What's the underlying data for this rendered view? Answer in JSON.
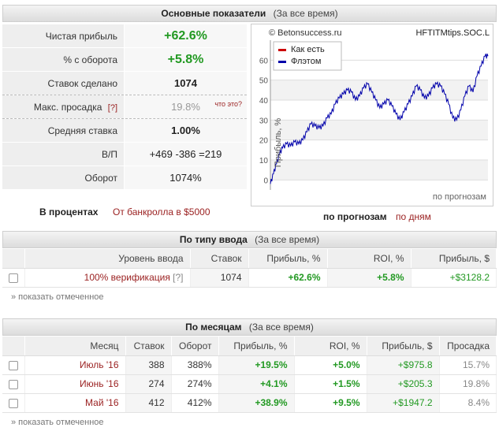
{
  "overview": {
    "title": "Основные показатели",
    "subtitle": "(За все время)",
    "rows": [
      {
        "label": "Чистая прибыль",
        "value": "+62.6%"
      },
      {
        "label": "% с оборота",
        "value": "+5.8%"
      },
      {
        "label": "Ставок сделано",
        "value": "1074"
      },
      {
        "label": "Макс. просадка",
        "qmark": "[?]",
        "value": "19.8%",
        "hint": "что это?"
      },
      {
        "label": "Средняя ставка",
        "value": "1.00%"
      },
      {
        "label": "В/П",
        "value": "+469 -386 =219"
      },
      {
        "label": "Оборот",
        "value": "1074%"
      }
    ],
    "pct_label": "В процентах",
    "bankroll_link": "От банкролла в $5000"
  },
  "chart": {
    "site": "© Betonsuccess.ru",
    "account": "HFTITMtips.SOC.L",
    "legend": [
      "Как есть",
      "Флэтом"
    ],
    "ylabel": "Прибыль, %",
    "xlabel_inside": "по прогнозам",
    "caption_bold": "по прогнозам",
    "caption_link": "по дням"
  },
  "chart_data": {
    "type": "line",
    "ylim": [
      -5,
      70
    ],
    "yticks": [
      0,
      10,
      20,
      30,
      40,
      50,
      60
    ],
    "xlim": [
      0,
      1074
    ],
    "series": [
      {
        "name": "Как есть",
        "color": "#cc0000",
        "values": []
      },
      {
        "name": "Флэтом",
        "color": "#0000aa",
        "x": [
          0,
          15,
          30,
          45,
          60,
          80,
          100,
          120,
          140,
          160,
          180,
          200,
          220,
          240,
          260,
          280,
          300,
          320,
          340,
          360,
          380,
          400,
          420,
          440,
          460,
          480,
          500,
          520,
          540,
          560,
          580,
          600,
          620,
          640,
          660,
          680,
          700,
          720,
          740,
          760,
          780,
          800,
          820,
          840,
          860,
          880,
          900,
          920,
          940,
          960,
          980,
          1000,
          1020,
          1040,
          1060,
          1074
        ],
        "values": [
          -2,
          3,
          8,
          13,
          16,
          18,
          17,
          19,
          18,
          20,
          24,
          28,
          27,
          26,
          27,
          31,
          33,
          38,
          41,
          43,
          45,
          44,
          40,
          42,
          46,
          48,
          44,
          40,
          36,
          38,
          40,
          37,
          33,
          30,
          34,
          38,
          42,
          47,
          45,
          41,
          42,
          46,
          48,
          47,
          43,
          38,
          31,
          30,
          35,
          42,
          47,
          44,
          52,
          57,
          62,
          62
        ]
      }
    ]
  },
  "by_type": {
    "title": "По типу ввода",
    "subtitle": "(За все время)",
    "headers": [
      "Уровень ввода",
      "Ставок",
      "Прибыль, %",
      "ROI, %",
      "Прибыль, $"
    ],
    "rows": [
      {
        "level": "100% верификация",
        "qmark": "[?]",
        "bets": "1074",
        "profit_pct": "+62.6%",
        "roi": "+5.8%",
        "profit_usd": "+$3128.2"
      }
    ],
    "show_marked": "» показать отмеченное"
  },
  "by_month": {
    "title": "По месяцам",
    "subtitle": "(За все время)",
    "headers": [
      "Месяц",
      "Ставок",
      "Оборот",
      "Прибыль, %",
      "ROI, %",
      "Прибыль, $",
      "Просадка"
    ],
    "rows": [
      {
        "month": "Июль '16",
        "bets": "388",
        "turnover": "388%",
        "profit_pct": "+19.5%",
        "roi": "+5.0%",
        "profit_usd": "+$975.8",
        "drawdown": "15.7%"
      },
      {
        "month": "Июнь '16",
        "bets": "274",
        "turnover": "274%",
        "profit_pct": "+4.1%",
        "roi": "+1.5%",
        "profit_usd": "+$205.3",
        "drawdown": "19.8%"
      },
      {
        "month": "Май '16",
        "bets": "412",
        "turnover": "412%",
        "profit_pct": "+38.9%",
        "roi": "+9.5%",
        "profit_usd": "+$1947.2",
        "drawdown": "8.4%"
      }
    ],
    "show_marked": "» показать отмеченное"
  }
}
